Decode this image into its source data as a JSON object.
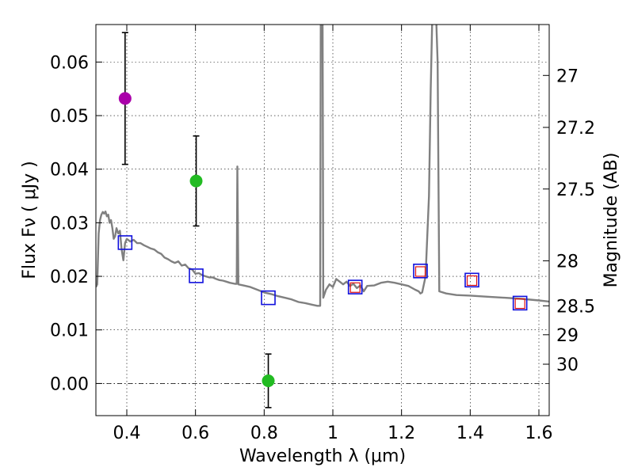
{
  "chart_data": {
    "type": "scatter",
    "xlabel": "Wavelength  λ (μm)",
    "ylabel": "Flux  Fν  ( μJy )",
    "y2label": "Magnitude (AB)",
    "xlim": [
      0.31,
      1.63
    ],
    "ylim": [
      -0.006,
      0.067
    ],
    "xticks": [
      0.4,
      0.6,
      0.8,
      1.0,
      1.2,
      1.4,
      1.6
    ],
    "xtick_labels": [
      "0.4",
      "0.6",
      "0.8",
      "1",
      "1.2",
      "1.4",
      "1.6"
    ],
    "yticks": [
      0.0,
      0.01,
      0.02,
      0.03,
      0.04,
      0.05,
      0.06
    ],
    "ytick_labels": [
      "0.00",
      "0.01",
      "0.02",
      "0.03",
      "0.04",
      "0.05",
      "0.06"
    ],
    "y2ticks": [
      {
        "label": "27",
        "flux": 0.0575
      },
      {
        "label": "27.2",
        "flux": 0.0478
      },
      {
        "label": "27.5",
        "flux": 0.0363
      },
      {
        "label": "28",
        "flux": 0.0229
      },
      {
        "label": "28.5",
        "flux": 0.0145
      },
      {
        "label": "29",
        "flux": 0.0091
      },
      {
        "label": "30",
        "flux": 0.0036
      }
    ],
    "grid": true,
    "zero_line": true,
    "sed_model": {
      "name": "model SED",
      "color": "#808080",
      "points": [
        [
          0.31,
          0.018
        ],
        [
          0.314,
          0.0185
        ],
        [
          0.318,
          0.028
        ],
        [
          0.322,
          0.0305
        ],
        [
          0.326,
          0.0315
        ],
        [
          0.33,
          0.032
        ],
        [
          0.334,
          0.0317
        ],
        [
          0.338,
          0.0321
        ],
        [
          0.342,
          0.0312
        ],
        [
          0.346,
          0.0315
        ],
        [
          0.35,
          0.03
        ],
        [
          0.354,
          0.0305
        ],
        [
          0.358,
          0.029
        ],
        [
          0.362,
          0.027
        ],
        [
          0.366,
          0.0275
        ],
        [
          0.37,
          0.029
        ],
        [
          0.375,
          0.028
        ],
        [
          0.38,
          0.0285
        ],
        [
          0.385,
          0.025
        ],
        [
          0.39,
          0.023
        ],
        [
          0.395,
          0.0262
        ],
        [
          0.4,
          0.027
        ],
        [
          0.41,
          0.0265
        ],
        [
          0.42,
          0.0268
        ],
        [
          0.43,
          0.0262
        ],
        [
          0.44,
          0.0262
        ],
        [
          0.45,
          0.0258
        ],
        [
          0.46,
          0.0255
        ],
        [
          0.47,
          0.0252
        ],
        [
          0.48,
          0.025
        ],
        [
          0.49,
          0.0245
        ],
        [
          0.5,
          0.0242
        ],
        [
          0.51,
          0.0235
        ],
        [
          0.52,
          0.0232
        ],
        [
          0.53,
          0.0228
        ],
        [
          0.54,
          0.0225
        ],
        [
          0.55,
          0.0228
        ],
        [
          0.56,
          0.022
        ],
        [
          0.57,
          0.0222
        ],
        [
          0.58,
          0.0215
        ],
        [
          0.59,
          0.0213
        ],
        [
          0.6,
          0.0205
        ],
        [
          0.61,
          0.0206
        ],
        [
          0.62,
          0.0202
        ],
        [
          0.63,
          0.02
        ],
        [
          0.64,
          0.0198
        ],
        [
          0.65,
          0.0198
        ],
        [
          0.66,
          0.0195
        ],
        [
          0.67,
          0.0193
        ],
        [
          0.68,
          0.0192
        ],
        [
          0.69,
          0.019
        ],
        [
          0.7,
          0.0188
        ],
        [
          0.715,
          0.0186
        ],
        [
          0.72,
          0.0186
        ],
        [
          0.722,
          0.0405
        ],
        [
          0.725,
          0.0185
        ],
        [
          0.74,
          0.0183
        ],
        [
          0.76,
          0.018
        ],
        [
          0.78,
          0.0175
        ],
        [
          0.8,
          0.017
        ],
        [
          0.82,
          0.0167
        ],
        [
          0.84,
          0.0163
        ],
        [
          0.86,
          0.016
        ],
        [
          0.88,
          0.0157
        ],
        [
          0.9,
          0.0152
        ],
        [
          0.92,
          0.015
        ],
        [
          0.94,
          0.0147
        ],
        [
          0.955,
          0.0145
        ],
        [
          0.963,
          0.0145
        ],
        [
          0.965,
          0.07
        ],
        [
          0.97,
          0.07
        ],
        [
          0.972,
          0.016
        ],
        [
          0.98,
          0.0175
        ],
        [
          0.99,
          0.0185
        ],
        [
          1.0,
          0.018
        ],
        [
          1.01,
          0.0195
        ],
        [
          1.02,
          0.019
        ],
        [
          1.03,
          0.0185
        ],
        [
          1.04,
          0.019
        ],
        [
          1.05,
          0.0182
        ],
        [
          1.06,
          0.0186
        ],
        [
          1.07,
          0.0178
        ],
        [
          1.08,
          0.0183
        ],
        [
          1.09,
          0.0172
        ],
        [
          1.1,
          0.0182
        ],
        [
          1.12,
          0.0183
        ],
        [
          1.14,
          0.0188
        ],
        [
          1.16,
          0.019
        ],
        [
          1.18,
          0.0188
        ],
        [
          1.2,
          0.0185
        ],
        [
          1.22,
          0.0182
        ],
        [
          1.24,
          0.0175
        ],
        [
          1.25,
          0.0172
        ],
        [
          1.255,
          0.0168
        ],
        [
          1.26,
          0.017
        ],
        [
          1.27,
          0.02
        ],
        [
          1.28,
          0.035
        ],
        [
          1.285,
          0.055
        ],
        [
          1.29,
          0.07
        ],
        [
          1.3,
          0.07
        ],
        [
          1.305,
          0.06
        ],
        [
          1.31,
          0.0172
        ],
        [
          1.33,
          0.0168
        ],
        [
          1.36,
          0.0165
        ],
        [
          1.4,
          0.0164
        ],
        [
          1.45,
          0.0162
        ],
        [
          1.5,
          0.016
        ],
        [
          1.55,
          0.0158
        ],
        [
          1.6,
          0.0155
        ],
        [
          1.63,
          0.0153
        ]
      ]
    },
    "photometry": [
      {
        "name": "purple detection",
        "x": 0.395,
        "y": 0.0532,
        "yerr": 0.0123,
        "color": "#aa00aa"
      },
      {
        "name": "green detection",
        "x": 0.602,
        "y": 0.0378,
        "yerr": 0.0084,
        "color": "#22bb22"
      },
      {
        "name": "green non-detection",
        "x": 0.812,
        "y": 0.0005,
        "yerr": 0.005,
        "color": "#22bb22"
      }
    ],
    "model_bands_blue": [
      {
        "x": 0.395,
        "y": 0.0263
      },
      {
        "x": 0.602,
        "y": 0.0201
      },
      {
        "x": 0.812,
        "y": 0.016
      },
      {
        "x": 1.065,
        "y": 0.018
      },
      {
        "x": 1.255,
        "y": 0.021
      },
      {
        "x": 1.405,
        "y": 0.0193
      },
      {
        "x": 1.545,
        "y": 0.015
      }
    ],
    "model_bands_red": [
      {
        "x": 1.065,
        "y": 0.0179
      },
      {
        "x": 1.255,
        "y": 0.0209
      },
      {
        "x": 1.405,
        "y": 0.0192
      },
      {
        "x": 1.545,
        "y": 0.0149
      }
    ]
  }
}
